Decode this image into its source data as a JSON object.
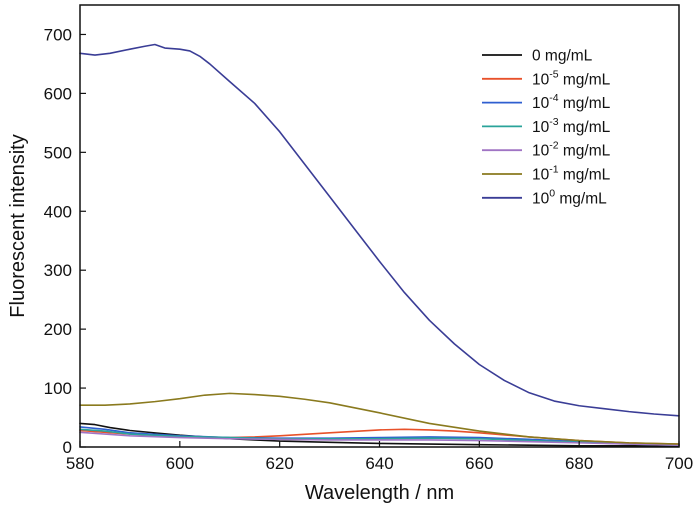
{
  "chart_data": {
    "type": "line",
    "xlabel": "Wavelength / nm",
    "ylabel": "Fluorescent intensity",
    "xlim": [
      580,
      700
    ],
    "ylim": [
      0,
      750
    ],
    "xticks": [
      580,
      600,
      620,
      640,
      660,
      680,
      700
    ],
    "yticks": [
      0,
      100,
      200,
      300,
      400,
      500,
      600,
      700
    ],
    "grid": false,
    "legend_position": "top-right",
    "series": [
      {
        "name": "0 mg/mL",
        "label_base": "0",
        "label_exp": "",
        "label_unit": "mg/mL",
        "color": "#111111",
        "x": [
          580,
          583,
          586,
          590,
          595,
          600,
          605,
          610,
          615,
          620,
          630,
          640,
          650,
          660,
          670,
          680,
          690,
          700
        ],
        "y": [
          40,
          38,
          33,
          28,
          24,
          20,
          17,
          14,
          12,
          10,
          8,
          6,
          5,
          4,
          3,
          2,
          2,
          2
        ]
      },
      {
        "name": "10-5 mg/mL",
        "label_base": "10",
        "label_exp": "-5",
        "label_unit": "mg/mL",
        "color": "#e8512a",
        "x": [
          580,
          585,
          590,
          600,
          610,
          615,
          620,
          630,
          640,
          645,
          650,
          655,
          660,
          670,
          680,
          690,
          700
        ],
        "y": [
          28,
          25,
          22,
          18,
          16,
          17,
          19,
          24,
          29,
          30,
          29,
          27,
          24,
          17,
          11,
          7,
          5
        ]
      },
      {
        "name": "10-4 mg/mL",
        "label_base": "10",
        "label_exp": "-4",
        "label_unit": "mg/mL",
        "color": "#2f5fd0",
        "x": [
          580,
          585,
          590,
          600,
          610,
          620,
          630,
          640,
          650,
          660,
          670,
          680,
          690,
          700
        ],
        "y": [
          34,
          30,
          24,
          19,
          16,
          15,
          15,
          16,
          17,
          16,
          13,
          9,
          6,
          4
        ]
      },
      {
        "name": "10-3 mg/mL",
        "label_base": "10",
        "label_exp": "-3",
        "label_unit": "mg/mL",
        "color": "#2aa39a",
        "x": [
          580,
          585,
          590,
          600,
          610,
          620,
          630,
          640,
          650,
          660,
          670,
          680,
          690,
          700
        ],
        "y": [
          30,
          27,
          22,
          18,
          16,
          14,
          14,
          14,
          15,
          14,
          11,
          8,
          5,
          3
        ]
      },
      {
        "name": "10-2 mg/mL",
        "label_base": "10",
        "label_exp": "-2",
        "label_unit": "mg/mL",
        "color": "#a074c4",
        "x": [
          580,
          585,
          590,
          600,
          610,
          620,
          630,
          640,
          650,
          660,
          670,
          680,
          690,
          700
        ],
        "y": [
          25,
          22,
          19,
          16,
          14,
          13,
          12,
          12,
          12,
          11,
          9,
          7,
          5,
          3
        ]
      },
      {
        "name": "10-1 mg/mL",
        "label_base": "10",
        "label_exp": "-1",
        "label_unit": "mg/mL",
        "color": "#8a7a1e",
        "x": [
          580,
          585,
          590,
          595,
          600,
          605,
          610,
          615,
          620,
          625,
          630,
          640,
          650,
          660,
          670,
          680,
          690,
          700
        ],
        "y": [
          71,
          71,
          73,
          77,
          82,
          88,
          91,
          89,
          86,
          81,
          75,
          58,
          40,
          27,
          17,
          11,
          7,
          5
        ]
      },
      {
        "name": "100 mg/mL",
        "label_base": "10",
        "label_exp": "0",
        "label_unit": "mg/mL",
        "color": "#3a3d96",
        "x": [
          580,
          583,
          586,
          590,
          593,
          595,
          597,
          600,
          602,
          604,
          606,
          610,
          615,
          620,
          625,
          630,
          635,
          640,
          645,
          650,
          655,
          660,
          665,
          670,
          675,
          680,
          685,
          690,
          695,
          700
        ],
        "y": [
          668,
          665,
          668,
          675,
          680,
          683,
          677,
          675,
          672,
          663,
          650,
          620,
          583,
          535,
          480,
          425,
          370,
          315,
          262,
          215,
          175,
          140,
          113,
          92,
          78,
          70,
          65,
          60,
          56,
          53
        ]
      }
    ]
  }
}
